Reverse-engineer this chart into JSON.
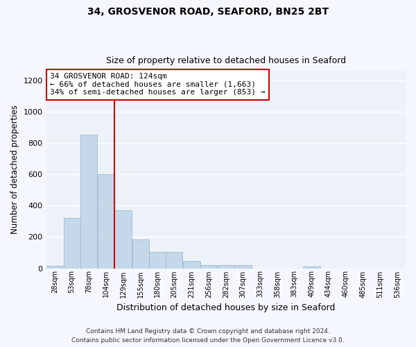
{
  "title1": "34, GROSVENOR ROAD, SEAFORD, BN25 2BT",
  "title2": "Size of property relative to detached houses in Seaford",
  "xlabel": "Distribution of detached houses by size in Seaford",
  "ylabel": "Number of detached properties",
  "annotation_line1": "34 GROSVENOR ROAD: 124sqm",
  "annotation_line2": "← 66% of detached houses are smaller (1,663)",
  "annotation_line3": "34% of semi-detached houses are larger (853) →",
  "bar_color": "#c5d8ea",
  "bar_edge_color": "#9bb8d0",
  "vline_color": "#cc0000",
  "vline_x": 129,
  "background_color": "#edf2f9",
  "grid_color": "#ffffff",
  "categories": [
    "28sqm",
    "53sqm",
    "78sqm",
    "104sqm",
    "129sqm",
    "155sqm",
    "180sqm",
    "205sqm",
    "231sqm",
    "256sqm",
    "282sqm",
    "307sqm",
    "333sqm",
    "358sqm",
    "383sqm",
    "409sqm",
    "434sqm",
    "460sqm",
    "485sqm",
    "511sqm",
    "536sqm"
  ],
  "bin_starts": [
    28,
    53,
    78,
    104,
    129,
    155,
    180,
    205,
    231,
    256,
    282,
    307,
    333,
    358,
    383,
    409,
    434,
    460,
    485,
    511,
    536
  ],
  "bin_width": 25,
  "values": [
    15,
    320,
    855,
    600,
    370,
    185,
    105,
    105,
    45,
    20,
    20,
    20,
    0,
    0,
    0,
    10,
    0,
    0,
    0,
    0,
    0
  ],
  "ylim": [
    0,
    1260
  ],
  "yticks": [
    0,
    200,
    400,
    600,
    800,
    1000,
    1200
  ],
  "fig_width": 6.0,
  "fig_height": 5.0,
  "dpi": 100,
  "footnote1": "Contains HM Land Registry data © Crown copyright and database right 2024.",
  "footnote2": "Contains public sector information licensed under the Open Government Licence v3.0."
}
